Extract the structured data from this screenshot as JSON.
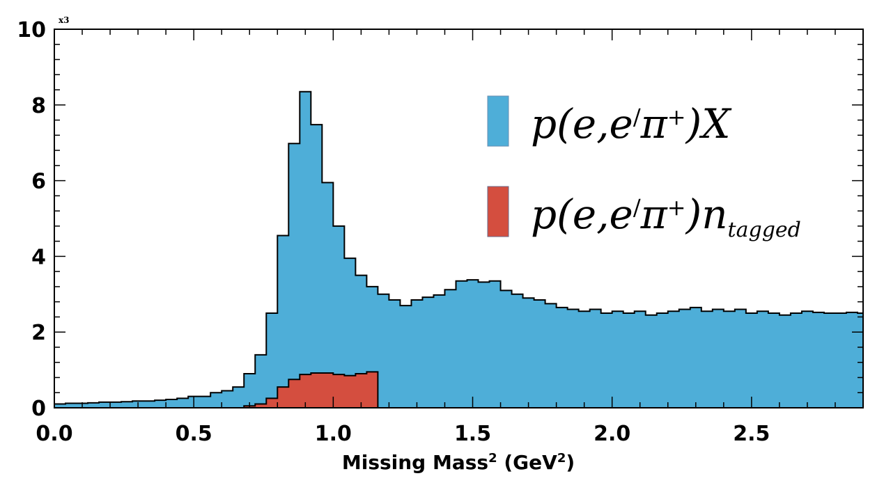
{
  "chart_data": {
    "type": "histogram",
    "xlabel": "Missing Mass",
    "xlabel_sup": "2",
    "xlabel_unit": "(GeV",
    "xlabel_unit_sup": "2",
    "xlabel_close": ")",
    "y_multiplier": "x3",
    "xlim": [
      0,
      2.9
    ],
    "ylim": [
      0,
      10
    ],
    "x_ticks": [
      {
        "value": 0.0,
        "label": "0.0"
      },
      {
        "value": 0.5,
        "label": "0.5"
      },
      {
        "value": 1.0,
        "label": "1.0"
      },
      {
        "value": 1.5,
        "label": "1.5"
      },
      {
        "value": 2.0,
        "label": "2.0"
      },
      {
        "value": 2.5,
        "label": "2.5"
      }
    ],
    "y_ticks": [
      {
        "value": 0,
        "label": "0"
      },
      {
        "value": 2,
        "label": "2"
      },
      {
        "value": 4,
        "label": "4"
      },
      {
        "value": 6,
        "label": "6"
      },
      {
        "value": 8,
        "label": "8"
      },
      {
        "value": 10,
        "label": "10"
      }
    ],
    "bin_width": 0.04,
    "series": [
      {
        "name": "p(e,e′π⁺)X",
        "color": "#4eaed8",
        "x_start": 0.0,
        "values": [
          0.1,
          0.12,
          0.12,
          0.13,
          0.15,
          0.15,
          0.16,
          0.18,
          0.18,
          0.2,
          0.22,
          0.25,
          0.3,
          0.3,
          0.4,
          0.45,
          0.55,
          0.9,
          1.4,
          2.5,
          4.55,
          6.98,
          8.35,
          7.48,
          5.95,
          4.8,
          3.95,
          3.5,
          3.2,
          3.0,
          2.85,
          2.7,
          2.85,
          2.92,
          2.98,
          3.12,
          3.35,
          3.38,
          3.32,
          3.35,
          3.1,
          3.0,
          2.9,
          2.85,
          2.75,
          2.65,
          2.6,
          2.55,
          2.6,
          2.5,
          2.55,
          2.5,
          2.55,
          2.45,
          2.5,
          2.55,
          2.6,
          2.65,
          2.55,
          2.6,
          2.55,
          2.6,
          2.5,
          2.55,
          2.5,
          2.45,
          2.5,
          2.55,
          2.52,
          2.5,
          2.5,
          2.52,
          2.5
        ]
      },
      {
        "name": "p(e,e′π⁺)n_tagged",
        "color": "#d44e3f",
        "x_start": 0.68,
        "values": [
          0.05,
          0.1,
          0.25,
          0.55,
          0.75,
          0.88,
          0.92,
          0.92,
          0.88,
          0.85,
          0.9,
          0.95
        ]
      }
    ],
    "legend": {
      "position": "top-right",
      "entries": [
        {
          "color": "#4eaed8",
          "prefix": "p(e,e",
          "prime": "/",
          "pi": "π",
          "plus": "+",
          "suffix": ")X",
          "subscript": ""
        },
        {
          "color": "#d44e3f",
          "prefix": "p(e,e",
          "prime": "/",
          "pi": "π",
          "plus": "+",
          "suffix": ")n",
          "subscript": "tagged"
        }
      ]
    }
  }
}
